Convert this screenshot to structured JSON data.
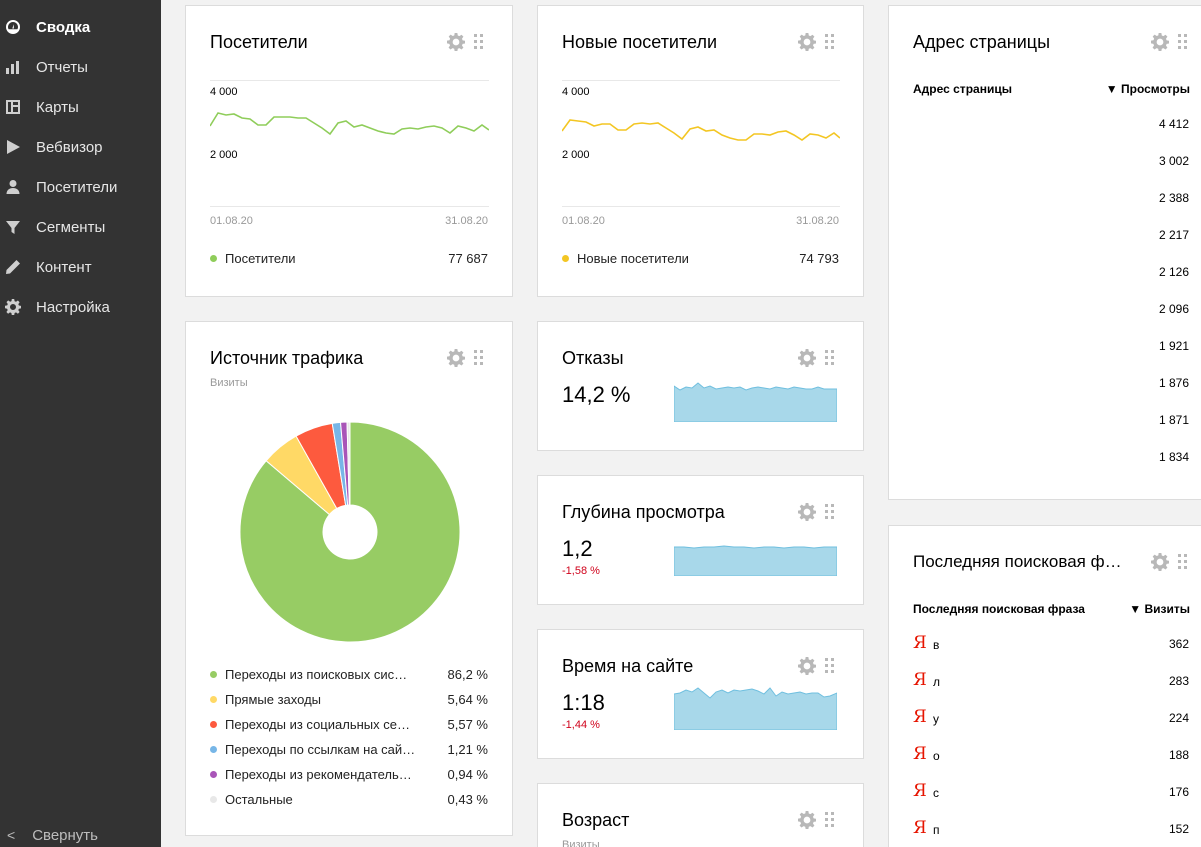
{
  "sidebar": {
    "items": [
      {
        "label": "Сводка",
        "icon": "gauge-icon",
        "active": true
      },
      {
        "label": "Отчеты",
        "icon": "bar-chart-icon"
      },
      {
        "label": "Карты",
        "icon": "map-icon"
      },
      {
        "label": "Вебвизор",
        "icon": "play-icon"
      },
      {
        "label": "Посетители",
        "icon": "user-icon"
      },
      {
        "label": "Сегменты",
        "icon": "filter-icon"
      },
      {
        "label": "Контент",
        "icon": "pencil-icon"
      },
      {
        "label": "Настройка",
        "icon": "gear-icon"
      }
    ],
    "collapse_label": "Свернуть"
  },
  "visitors": {
    "title": "Посетители",
    "y_top": "4 000",
    "y_mid": "2 000",
    "date_start": "01.08.20",
    "date_end": "31.08.20",
    "legend_label": "Посетители",
    "legend_value": "77 687",
    "color": "#8fcd5a"
  },
  "new_visitors": {
    "title": "Новые посетители",
    "y_top": "4 000",
    "y_mid": "2 000",
    "date_start": "01.08.20",
    "date_end": "31.08.20",
    "legend_label": "Новые посетители",
    "legend_value": "74 793",
    "color": "#f3c623"
  },
  "page_address": {
    "title": "Адрес страницы",
    "col_name": "Адрес страницы",
    "col_views": "▼ Просмотры",
    "rows": [
      "4 412",
      "3 002",
      "2 388",
      "2 217",
      "2 126",
      "2 096",
      "1 921",
      "1 876",
      "1 871",
      "1 834"
    ]
  },
  "traffic": {
    "title": "Источник трафика",
    "subtitle": "Визиты",
    "legend": [
      {
        "name": "Переходы из поисковых сис…",
        "value": "86,2 %",
        "pct": 86.2,
        "color": "#97cc64"
      },
      {
        "name": "Прямые заходы",
        "value": "5,64 %",
        "pct": 5.64,
        "color": "#ffd966"
      },
      {
        "name": "Переходы из социальных се…",
        "value": "5,57 %",
        "pct": 5.57,
        "color": "#fd5a3e"
      },
      {
        "name": "Переходы по ссылкам на сай…",
        "value": "1,21 %",
        "pct": 1.21,
        "color": "#77b6e7"
      },
      {
        "name": "Переходы из рекомендатель…",
        "value": "0,94 %",
        "pct": 0.94,
        "color": "#a955b8"
      },
      {
        "name": "Остальные",
        "value": "0,43 %",
        "pct": 0.43,
        "color": "#e8e8e8"
      }
    ]
  },
  "bounce": {
    "title": "Отказы",
    "value": "14,2 %",
    "delta": ""
  },
  "depth": {
    "title": "Глубина просмотра",
    "value": "1,2",
    "delta": "-1,58 %"
  },
  "time_on_site": {
    "title": "Время на сайте",
    "value": "1:18",
    "delta": "-1,44 %"
  },
  "age": {
    "title": "Возраст",
    "subtitle": "Визиты"
  },
  "search_phrase": {
    "title": "Последняя поисковая ф…",
    "col_name": "Последняя поисковая фраза",
    "col_visits": "▼ Визиты",
    "rows": [
      {
        "phrase": "в",
        "visits": "362"
      },
      {
        "phrase": "л",
        "visits": "283"
      },
      {
        "phrase": "у",
        "visits": "224"
      },
      {
        "phrase": "о",
        "visits": "188"
      },
      {
        "phrase": "с",
        "visits": "176"
      },
      {
        "phrase": "п",
        "visits": "152"
      }
    ],
    "engine_glyph": "Я"
  },
  "colors": {
    "sidebar_bg": "#333333",
    "sparkline_fill": "#a8d8ea",
    "sparkline_stroke": "#6fbfdf",
    "negative": "#d0021b"
  }
}
